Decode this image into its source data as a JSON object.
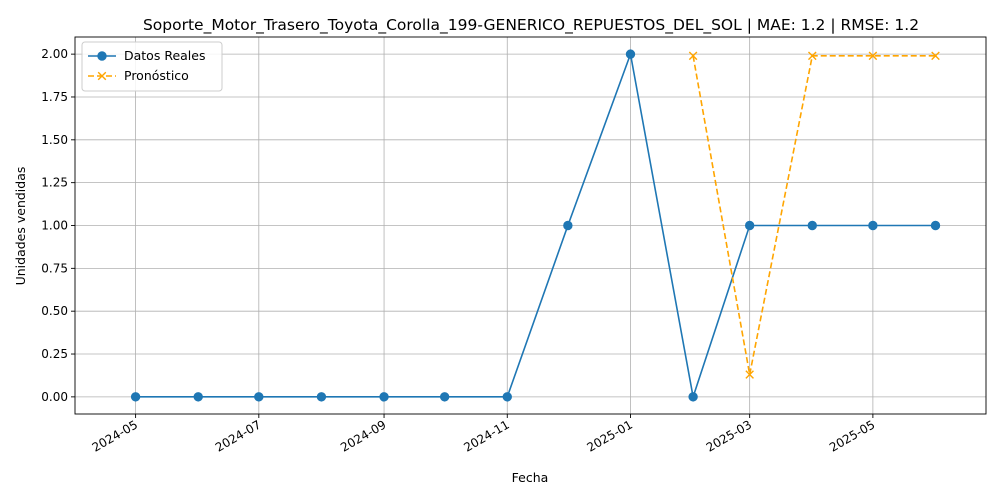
{
  "chart_data": {
    "type": "line",
    "title": "Soporte_Motor_Trasero_Toyota_Corolla_199-GENERICO_REPUESTOS_DEL_SOL | MAE: 1.2 | RMSE: 1.2",
    "xlabel": "Fecha",
    "ylabel": "Unidades vendidas",
    "ylim": [
      -0.1,
      2.1
    ],
    "xlim": [
      "2024-04-01",
      "2025-06-26"
    ],
    "grid": true,
    "legend_position": "upper-left",
    "x_ticks": [
      "2024-05",
      "2024-07",
      "2024-09",
      "2024-11",
      "2025-01",
      "2025-03",
      "2025-05"
    ],
    "y_ticks": [
      "0.00",
      "0.25",
      "0.50",
      "0.75",
      "1.00",
      "1.25",
      "1.50",
      "1.75",
      "2.00"
    ],
    "series": [
      {
        "name": "Datos Reales",
        "color": "#1f77b4",
        "style": "solid",
        "marker": "circle",
        "x": [
          "2024-05-01",
          "2024-06-01",
          "2024-07-01",
          "2024-08-01",
          "2024-09-01",
          "2024-10-01",
          "2024-11-01",
          "2024-12-01",
          "2025-01-01",
          "2025-02-01",
          "2025-03-01",
          "2025-04-01",
          "2025-05-01",
          "2025-06-01"
        ],
        "values": [
          0,
          0,
          0,
          0,
          0,
          0,
          0,
          1,
          2,
          0,
          1,
          1,
          1,
          1
        ]
      },
      {
        "name": "Pronóstico",
        "color": "#ffa500",
        "style": "dashed",
        "marker": "x",
        "x": [
          "2025-02-01",
          "2025-03-01",
          "2025-04-01",
          "2025-05-01",
          "2025-06-01"
        ],
        "values": [
          1.99,
          0.13,
          1.99,
          1.99,
          1.99
        ]
      }
    ]
  }
}
